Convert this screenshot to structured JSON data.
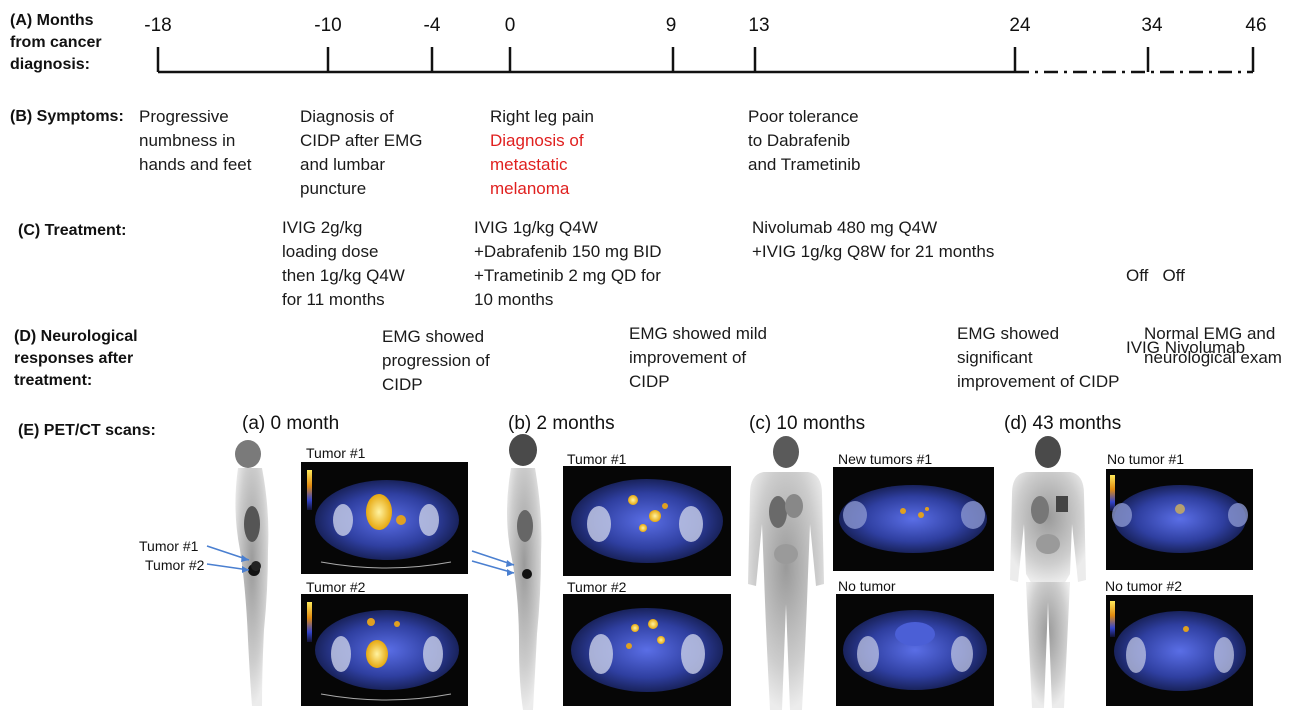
{
  "timeline": {
    "label": [
      "(A) Months",
      "from cancer",
      "diagnosis:"
    ],
    "ticks": [
      "-18",
      "-10",
      "-4",
      "0",
      "9",
      "13",
      "24",
      "34",
      "46"
    ]
  },
  "symptoms": {
    "label": "(B) Symptoms:",
    "items": [
      {
        "lines": [
          "Progressive",
          "numbness in",
          "hands and feet"
        ]
      },
      {
        "lines": [
          "Diagnosis of",
          "CIDP after EMG",
          "and lumbar",
          "puncture"
        ]
      },
      {
        "lines": [
          "Right leg pain"
        ],
        "red_lines": [
          "Diagnosis of",
          "metastatic",
          "melanoma"
        ]
      },
      {
        "lines": [
          "Poor tolerance",
          "to Dabrafenib",
          "and Trametinib"
        ]
      }
    ]
  },
  "treatment": {
    "label": "(C) Treatment:",
    "items": [
      {
        "lines": [
          "IVIG 2g/kg",
          "loading dose",
          "then 1g/kg Q4W",
          "for 11 months"
        ]
      },
      {
        "lines": [
          "IVIG 1g/kg Q4W",
          "+Dabrafenib 150 mg BID",
          "+Trametinib 2 mg QD for",
          "10 months"
        ]
      },
      {
        "lines": [
          "Nivolumab 480 mg Q4W",
          "+IVIG 1g/kg Q8W for 21 months"
        ]
      },
      {
        "lines": [
          "Off   Off",
          "IVIG Nivolumab"
        ]
      }
    ]
  },
  "neuro": {
    "label": [
      "(D) Neurological",
      "responses after",
      "treatment:"
    ],
    "items": [
      {
        "lines": [
          "EMG showed",
          "progression of",
          "CIDP"
        ]
      },
      {
        "lines": [
          "EMG showed mild",
          "improvement of",
          "CIDP"
        ]
      },
      {
        "lines": [
          "EMG showed",
          "significant",
          "improvement of CIDP"
        ]
      },
      {
        "lines": [
          "Normal EMG and",
          "neurological exam"
        ]
      }
    ]
  },
  "scans": {
    "label": "(E) PET/CT scans:",
    "panels": [
      {
        "title": "(a) 0 month",
        "top_label": "Tumor #1",
        "bottom_label": "Tumor #2"
      },
      {
        "title": "(b) 2 months",
        "top_label": "Tumor #1",
        "bottom_label": "Tumor #2"
      },
      {
        "title": "(c) 10 months",
        "top_label": "New tumors #1",
        "bottom_label": "No tumor"
      },
      {
        "title": "(d) 43 months",
        "top_label": "No tumor #1",
        "bottom_label": "No tumor #2"
      }
    ],
    "arrow_labels": [
      "Tumor #1",
      "Tumor #2"
    ]
  },
  "colors": {
    "highlight_red": "#e0201f",
    "pet_blue": "#3a4fc8",
    "pet_hot": "#f5c21b",
    "mip_gray": "#cfcfcf"
  }
}
